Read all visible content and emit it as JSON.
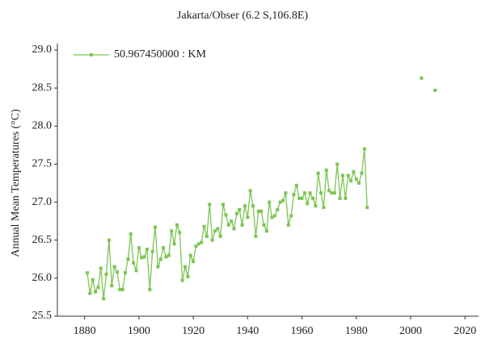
{
  "chart_data": {
    "type": "line",
    "title": "Jakarta/Obser (6.2 S,106.8E)",
    "y_label": "Annual Mean Temperatures (°C)",
    "x": [
      1881,
      1882,
      1883,
      1884,
      1885,
      1886,
      1887,
      1888,
      1889,
      1890,
      1891,
      1892,
      1893,
      1894,
      1895,
      1896,
      1897,
      1898,
      1899,
      1900,
      1901,
      1902,
      1903,
      1904,
      1905,
      1906,
      1907,
      1908,
      1909,
      1910,
      1911,
      1912,
      1913,
      1914,
      1915,
      1916,
      1917,
      1918,
      1919,
      1920,
      1921,
      1922,
      1923,
      1924,
      1925,
      1926,
      1927,
      1928,
      1929,
      1930,
      1931,
      1932,
      1933,
      1934,
      1935,
      1936,
      1937,
      1938,
      1939,
      1940,
      1941,
      1942,
      1943,
      1944,
      1945,
      1946,
      1947,
      1948,
      1949,
      1950,
      1951,
      1952,
      1953,
      1954,
      1955,
      1956,
      1957,
      1958,
      1959,
      1960,
      1961,
      1962,
      1963,
      1964,
      1965,
      1966,
      1967,
      1968,
      1969,
      1970,
      1971,
      1972,
      1973,
      1974,
      1975,
      1976,
      1977,
      1978,
      1979,
      1980,
      1981,
      1982,
      1983,
      1984,
      1985,
      2004,
      2005,
      2009
    ],
    "series": [
      {
        "name": "50.967450000 : KM",
        "color": "#7cc552",
        "values": [
          26.07,
          25.8,
          25.98,
          25.82,
          25.88,
          26.13,
          25.73,
          26.05,
          26.5,
          25.9,
          26.15,
          26.08,
          25.85,
          25.85,
          26.07,
          26.25,
          26.58,
          26.2,
          26.1,
          26.4,
          26.27,
          26.28,
          26.38,
          25.85,
          26.35,
          26.67,
          26.15,
          26.25,
          26.4,
          26.28,
          26.3,
          26.62,
          26.45,
          26.7,
          26.6,
          25.97,
          26.15,
          26.02,
          26.3,
          26.22,
          26.42,
          26.45,
          26.47,
          26.68,
          26.55,
          26.97,
          26.5,
          26.62,
          26.65,
          26.55,
          26.97,
          26.83,
          26.7,
          26.75,
          26.65,
          26.85,
          26.9,
          26.7,
          26.95,
          26.8,
          27.15,
          26.95,
          26.55,
          26.88,
          26.88,
          26.7,
          26.62,
          27.0,
          26.8,
          26.82,
          26.9,
          27.0,
          27.02,
          27.12,
          26.7,
          26.82,
          27.1,
          27.22,
          27.05,
          27.05,
          27.12,
          26.98,
          27.12,
          27.05,
          26.95,
          27.38,
          27.12,
          26.93,
          27.42,
          27.15,
          27.12,
          27.12,
          27.5,
          27.05,
          27.35,
          27.05,
          27.35,
          27.28,
          27.4,
          27.3,
          27.25,
          27.38,
          27.7,
          26.93,
          null,
          28.63,
          null,
          28.47
        ]
      }
    ],
    "xlim": [
      1870,
      2025
    ],
    "xticks": [
      1880,
      1900,
      1920,
      1940,
      1960,
      1980,
      2000,
      2020
    ],
    "ylim": [
      25.5,
      29.0
    ],
    "yticks": [
      25.5,
      {
        "value": 26,
        "label": "26.0"
      },
      26.5,
      {
        "value": 27,
        "label": "27.0"
      },
      27.5,
      {
        "value": 28,
        "label": "28.0"
      },
      28.5,
      {
        "value": 29,
        "label": "29.0"
      }
    ],
    "grid": false,
    "legend": "top-left"
  }
}
